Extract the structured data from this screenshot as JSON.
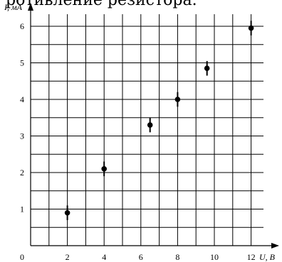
{
  "top_caption": "ротивление резистора.",
  "chart_data": {
    "type": "scatter",
    "title": "",
    "xlabel": "U, В",
    "ylabel": "I, мА",
    "origin_label": "0",
    "xlim": [
      0,
      13
    ],
    "ylim": [
      0,
      6.5
    ],
    "x_ticks": [
      2,
      4,
      6,
      8,
      10,
      12
    ],
    "x_tick_labels": [
      "2",
      "4",
      "6",
      "8",
      "10",
      "12"
    ],
    "y_ticks": [
      1,
      2,
      3,
      4,
      5,
      6
    ],
    "y_tick_labels": [
      "1",
      "2",
      "3",
      "4",
      "5",
      "6"
    ],
    "grid": true,
    "grid_x_step": 1,
    "grid_y_step": 0.5,
    "series": [
      {
        "x": [
          2,
          4,
          6.5,
          8,
          9.6,
          12
        ],
        "y": [
          0.9,
          2.1,
          3.3,
          4.0,
          4.85,
          5.95
        ],
        "y_err": [
          0.2,
          0.2,
          0.2,
          0.2,
          0.2,
          0.2
        ]
      }
    ],
    "colors": {
      "grid": "#000000",
      "marker": "#000000"
    }
  }
}
